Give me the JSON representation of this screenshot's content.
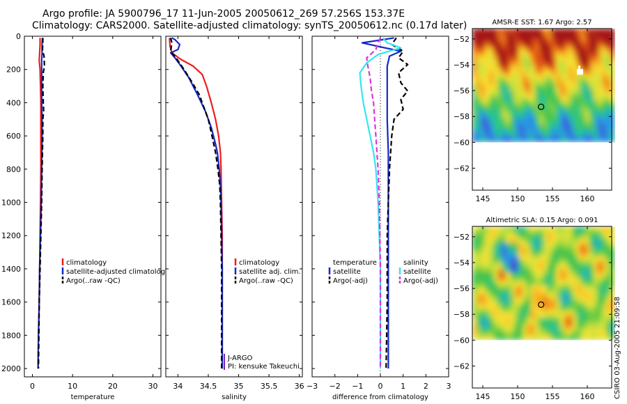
{
  "figure": {
    "title_line1": "Argo profile: JA 5900796_17 11-Jun-2005 20050612_269 57.256S 153.37E",
    "title_line2": "Climatology: CARS2000. Satellite-adjusted climatology: synTS_20050612.nc (0.17d later)",
    "credit": "CSIRO 03-Aug-2005 21:09:58"
  },
  "colors": {
    "climatology": "#ee1c1c",
    "satellite": "#1428c8",
    "argo": "#000000",
    "salinity_diff": "#33e6f0",
    "argo_salinity_adj": "#e030e0"
  },
  "chart_data": [
    {
      "id": "temperature",
      "type": "line",
      "xlabel": "temperature",
      "ylabel": "",
      "xlim": [
        -2,
        32
      ],
      "ylim": [
        2050,
        0
      ],
      "xticks": [
        0,
        10,
        20,
        30
      ],
      "yticks": [
        0,
        200,
        400,
        600,
        800,
        1000,
        1200,
        1400,
        1600,
        1800,
        2000
      ],
      "legend": [
        "climatology",
        "satellite-adjusted climatology",
        "Argo(..raw -QC)"
      ],
      "legend_placement": "middle-right",
      "series": [
        {
          "name": "climatology",
          "style": "solid",
          "color_key": "climatology",
          "points": [
            [
              1.9,
              10
            ],
            [
              1.9,
              50
            ],
            [
              1.8,
              100
            ],
            [
              1.7,
              150
            ],
            [
              1.9,
              200
            ],
            [
              2.0,
              300
            ],
            [
              2.1,
              400
            ],
            [
              2.1,
              500
            ],
            [
              2.1,
              600
            ],
            [
              2.1,
              800
            ],
            [
              2.0,
              1000
            ],
            [
              1.9,
              1200
            ],
            [
              1.8,
              1400
            ],
            [
              1.7,
              1600
            ],
            [
              1.5,
              1800
            ],
            [
              1.4,
              2000
            ]
          ]
        },
        {
          "name": "satellite-adjusted climatology",
          "style": "solid",
          "color_key": "satellite",
          "points": [
            [
              2.5,
              10
            ],
            [
              2.4,
              50
            ],
            [
              2.4,
              100
            ],
            [
              2.3,
              150
            ],
            [
              2.3,
              200
            ],
            [
              2.3,
              300
            ],
            [
              2.3,
              400
            ],
            [
              2.4,
              500
            ],
            [
              2.4,
              600
            ],
            [
              2.3,
              800
            ],
            [
              2.2,
              1000
            ],
            [
              2.0,
              1200
            ],
            [
              1.8,
              1400
            ],
            [
              1.7,
              1600
            ],
            [
              1.5,
              1800
            ],
            [
              1.4,
              2000
            ]
          ]
        },
        {
          "name": "Argo(..raw -QC)",
          "style": "dashed",
          "color_key": "argo",
          "points": [
            [
              2.6,
              10
            ],
            [
              2.6,
              50
            ],
            [
              2.5,
              80
            ],
            [
              2.9,
              120
            ],
            [
              3.0,
              180
            ],
            [
              2.7,
              220
            ],
            [
              2.6,
              300
            ],
            [
              2.7,
              400
            ],
            [
              2.8,
              450
            ],
            [
              2.6,
              500
            ],
            [
              2.6,
              600
            ],
            [
              2.5,
              700
            ],
            [
              2.4,
              800
            ],
            [
              2.3,
              1000
            ],
            [
              2.1,
              1200
            ],
            [
              1.9,
              1400
            ],
            [
              1.7,
              1600
            ],
            [
              1.6,
              1800
            ],
            [
              1.5,
              2000
            ]
          ]
        }
      ]
    },
    {
      "id": "salinity",
      "type": "line",
      "xlabel": "salinity",
      "ylabel": "",
      "xlim": [
        33.8,
        36.05
      ],
      "ylim": [
        2050,
        0
      ],
      "xticks": [
        34,
        34.5,
        35,
        35.5,
        36
      ],
      "yticks": [
        0,
        200,
        400,
        600,
        800,
        1000,
        1200,
        1400,
        1600,
        1800,
        2000
      ],
      "legend": [
        "climatology",
        "satellite adj. clim.",
        "Argo(..raw -QC)"
      ],
      "legend_placement": "middle-right",
      "annotations": [
        "J-ARGO",
        "PI: kensuke Takeuchi"
      ],
      "series": [
        {
          "name": "climatology",
          "style": "solid",
          "color_key": "climatology",
          "points": [
            [
              33.86,
              10
            ],
            [
              33.87,
              60
            ],
            [
              33.9,
              100
            ],
            [
              34.05,
              140
            ],
            [
              34.25,
              180
            ],
            [
              34.4,
              230
            ],
            [
              34.47,
              300
            ],
            [
              34.55,
              400
            ],
            [
              34.62,
              500
            ],
            [
              34.67,
              600
            ],
            [
              34.7,
              700
            ],
            [
              34.71,
              800
            ],
            [
              34.72,
              1000
            ],
            [
              34.73,
              1200
            ],
            [
              34.73,
              1400
            ],
            [
              34.73,
              1600
            ],
            [
              34.73,
              2000
            ]
          ]
        },
        {
          "name": "satellite adj. clim.",
          "style": "solid",
          "color_key": "satellite",
          "points": [
            [
              33.9,
              10
            ],
            [
              33.95,
              20
            ],
            [
              34.03,
              50
            ],
            [
              34.0,
              80
            ],
            [
              33.88,
              100
            ],
            [
              33.95,
              130
            ],
            [
              34.05,
              180
            ],
            [
              34.18,
              250
            ],
            [
              34.32,
              350
            ],
            [
              34.45,
              450
            ],
            [
              34.55,
              550
            ],
            [
              34.62,
              650
            ],
            [
              34.65,
              700
            ],
            [
              34.68,
              800
            ],
            [
              34.7,
              900
            ],
            [
              34.71,
              1000
            ],
            [
              34.72,
              1200
            ],
            [
              34.73,
              1400
            ],
            [
              34.73,
              1600
            ],
            [
              34.73,
              2000
            ]
          ]
        },
        {
          "name": "Argo(..raw -QC)",
          "style": "dashed",
          "color_key": "argo",
          "points": [
            [
              33.88,
              10
            ],
            [
              33.9,
              40
            ],
            [
              33.88,
              90
            ],
            [
              33.97,
              130
            ],
            [
              34.1,
              200
            ],
            [
              34.22,
              270
            ],
            [
              34.35,
              350
            ],
            [
              34.42,
              420
            ],
            [
              34.5,
              500
            ],
            [
              34.55,
              580
            ],
            [
              34.62,
              700
            ],
            [
              34.66,
              800
            ],
            [
              34.69,
              900
            ],
            [
              34.7,
              1000
            ],
            [
              34.71,
              1200
            ],
            [
              34.72,
              1400
            ],
            [
              34.72,
              1600
            ],
            [
              34.72,
              2000
            ]
          ]
        }
      ]
    },
    {
      "id": "difference",
      "type": "line",
      "xlabel": "difference from climatology",
      "ylabel": "",
      "xlim": [
        -3,
        3
      ],
      "ylim": [
        2050,
        0
      ],
      "xticks": [
        -3,
        -2,
        -1,
        0,
        1,
        2,
        3
      ],
      "yticks": [
        0,
        200,
        400,
        600,
        800,
        1000,
        1200,
        1400,
        1600,
        1800,
        2000
      ],
      "legend_left": [
        "temperature",
        "satellite",
        "Argo(-adj)"
      ],
      "legend_right": [
        "salinity",
        "satellite",
        "Argo(-adj)"
      ],
      "legend_placement": "middle",
      "series": [
        {
          "name": "satellite",
          "group": "temperature",
          "style": "solid",
          "color_key": "satellite",
          "points": [
            [
              0.6,
              10
            ],
            [
              -0.8,
              40
            ],
            [
              0.2,
              70
            ],
            [
              0.9,
              90
            ],
            [
              0.4,
              120
            ],
            [
              0.3,
              180
            ],
            [
              0.3,
              300
            ],
            [
              0.3,
              500
            ],
            [
              0.35,
              700
            ],
            [
              0.35,
              1000
            ],
            [
              0.35,
              1500
            ],
            [
              0.35,
              2000
            ]
          ]
        },
        {
          "name": "Argo(-adj)",
          "group": "temperature",
          "style": "dashed",
          "color_key": "argo",
          "points": [
            [
              0.7,
              10
            ],
            [
              0.5,
              50
            ],
            [
              1.0,
              90
            ],
            [
              0.8,
              130
            ],
            [
              1.2,
              170
            ],
            [
              0.8,
              220
            ],
            [
              0.9,
              280
            ],
            [
              1.2,
              330
            ],
            [
              0.9,
              380
            ],
            [
              1.0,
              440
            ],
            [
              0.6,
              500
            ],
            [
              0.5,
              600
            ],
            [
              0.4,
              800
            ],
            [
              0.35,
              1000
            ],
            [
              0.3,
              1200
            ],
            [
              0.3,
              1600
            ],
            [
              0.25,
              2000
            ]
          ]
        },
        {
          "name": "satellite",
          "group": "salinity",
          "style": "solid",
          "color_key": "salinity_diff",
          "points": [
            [
              0.1,
              10
            ],
            [
              0.3,
              40
            ],
            [
              0.9,
              70
            ],
            [
              -0.1,
              110
            ],
            [
              -0.6,
              160
            ],
            [
              -0.9,
              220
            ],
            [
              -0.85,
              300
            ],
            [
              -0.75,
              400
            ],
            [
              -0.6,
              500
            ],
            [
              -0.45,
              600
            ],
            [
              -0.3,
              700
            ],
            [
              -0.2,
              800
            ],
            [
              -0.15,
              900
            ],
            [
              -0.1,
              1000
            ],
            [
              -0.05,
              1200
            ],
            [
              0.0,
              1400
            ],
            [
              0.0,
              1600
            ],
            [
              0.0,
              2000
            ]
          ]
        },
        {
          "name": "Argo(-adj)",
          "group": "salinity",
          "style": "dashed",
          "color_key": "argo_salinity_adj",
          "points": [
            [
              0.0,
              10
            ],
            [
              -0.1,
              40
            ],
            [
              -0.2,
              80
            ],
            [
              -0.6,
              130
            ],
            [
              -0.55,
              180
            ],
            [
              -0.45,
              250
            ],
            [
              -0.4,
              320
            ],
            [
              -0.3,
              400
            ],
            [
              -0.25,
              500
            ],
            [
              -0.2,
              600
            ],
            [
              -0.15,
              700
            ],
            [
              -0.1,
              800
            ],
            [
              -0.05,
              1000
            ],
            [
              -0.02,
              1200
            ],
            [
              0.0,
              1400
            ],
            [
              0.0,
              2000
            ]
          ]
        }
      ]
    },
    {
      "id": "sst_map",
      "type": "heatmap",
      "title": "AMSR-E SST: 1.67 Argo: 2.57",
      "xlim": [
        143.5,
        163.5
      ],
      "ylim": [
        -63.7,
        -51.2
      ],
      "xticks": [
        145,
        150,
        155,
        160
      ],
      "yticks": [
        -52,
        -54,
        -56,
        -58,
        -60,
        -62
      ],
      "data_lat_range": [
        -60,
        -51.2
      ],
      "marker": {
        "lon": 153.37,
        "lat": -57.256,
        "symbol": "circle"
      }
    },
    {
      "id": "sla_map",
      "type": "heatmap",
      "title": "Altimetric SLA: 0.15 Argo: 0.091",
      "xlim": [
        143.5,
        163.5
      ],
      "ylim": [
        -63.7,
        -51.2
      ],
      "xticks": [
        145,
        150,
        155,
        160
      ],
      "yticks": [
        -52,
        -54,
        -56,
        -58,
        -60,
        -62
      ],
      "data_lat_range": [
        -60,
        -51.2
      ],
      "marker": {
        "lon": 153.37,
        "lat": -57.256,
        "symbol": "circle"
      }
    }
  ]
}
